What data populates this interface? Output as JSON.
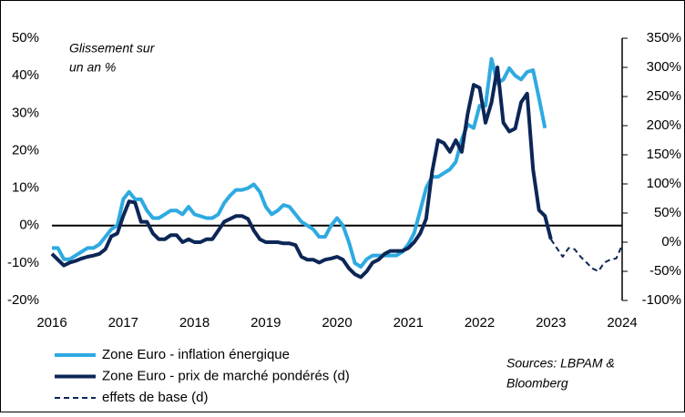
{
  "chart_data": {
    "type": "line",
    "annotation": "Glissement sur",
    "annotation2": "un an %",
    "source": [
      "Sources: LBPAM &",
      "Bloomberg"
    ],
    "xlim": [
      2016,
      2024
    ],
    "xticks": [
      2016,
      2017,
      2018,
      2019,
      2020,
      2021,
      2022,
      2023,
      2024
    ],
    "ylim": [
      -20,
      50
    ],
    "yticks": [
      {
        "value": -20,
        "label": "-20%"
      },
      {
        "value": -10,
        "label": "-10%"
      },
      {
        "value": 0,
        "label": "0%"
      },
      {
        "value": 10,
        "label": "10%"
      },
      {
        "value": 20,
        "label": "20%"
      },
      {
        "value": 30,
        "label": "30%"
      },
      {
        "value": 40,
        "label": "40%"
      },
      {
        "value": 50,
        "label": "50%"
      }
    ],
    "y2lim": [
      -100,
      350
    ],
    "y2ticks": [
      {
        "value": -100,
        "label": "-100%"
      },
      {
        "value": -50,
        "label": "-50%"
      },
      {
        "value": 0,
        "label": "0%"
      },
      {
        "value": 50,
        "label": "50%"
      },
      {
        "value": 100,
        "label": "100%"
      },
      {
        "value": 150,
        "label": "150%"
      },
      {
        "value": 200,
        "label": "200%"
      },
      {
        "value": 250,
        "label": "250%"
      },
      {
        "value": 300,
        "label": "300%"
      },
      {
        "value": 350,
        "label": "350%"
      }
    ],
    "series": [
      {
        "name": "Zone Euro -  inflation énergique",
        "color": "#2eaae1",
        "axis": "y",
        "x": [
          2016,
          2016.083,
          2016.167,
          2016.25,
          2016.333,
          2016.417,
          2016.5,
          2016.583,
          2016.667,
          2016.75,
          2016.833,
          2016.917,
          2017,
          2017.083,
          2017.167,
          2017.25,
          2017.333,
          2017.417,
          2017.5,
          2017.583,
          2017.667,
          2017.75,
          2017.833,
          2017.917,
          2018,
          2018.083,
          2018.167,
          2018.25,
          2018.333,
          2018.417,
          2018.5,
          2018.583,
          2018.667,
          2018.75,
          2018.833,
          2018.917,
          2019,
          2019.083,
          2019.167,
          2019.25,
          2019.333,
          2019.417,
          2019.5,
          2019.583,
          2019.667,
          2019.75,
          2019.833,
          2019.917,
          2020,
          2020.083,
          2020.167,
          2020.25,
          2020.333,
          2020.417,
          2020.5,
          2020.583,
          2020.667,
          2020.75,
          2020.833,
          2020.917,
          2021,
          2021.083,
          2021.167,
          2021.25,
          2021.333,
          2021.417,
          2021.5,
          2021.583,
          2021.667,
          2021.75,
          2021.833,
          2021.917,
          2022,
          2022.083,
          2022.167,
          2022.25,
          2022.333,
          2022.417,
          2022.5,
          2022.583,
          2022.667,
          2022.75,
          2022.833,
          2022.917
        ],
        "values": [
          -6,
          -6,
          -9,
          -9,
          -8,
          -7,
          -6,
          -6,
          -5,
          -3,
          -1,
          0,
          7,
          9,
          7,
          7,
          4,
          2,
          2,
          3,
          4,
          4,
          3,
          5,
          3,
          2.5,
          2,
          2,
          3,
          6,
          8,
          9.5,
          9.5,
          10,
          11,
          9,
          5,
          3,
          4,
          5.5,
          5,
          3,
          1,
          0,
          -1,
          -3,
          -3,
          0,
          2,
          0,
          -4.5,
          -10,
          -11,
          -9,
          -8,
          -8,
          -8,
          -8,
          -8,
          -7,
          -5,
          -2,
          4,
          10,
          13,
          13,
          14,
          15,
          17,
          23,
          27,
          26,
          32,
          32,
          44.5,
          38,
          39,
          42,
          40,
          39,
          41,
          41.5,
          34,
          26
        ]
      },
      {
        "name": "Zone Euro -  prix de marché pondérés (d)",
        "color": "#0c2656",
        "axis": "y2",
        "x": [
          2016,
          2016.083,
          2016.167,
          2016.25,
          2016.333,
          2016.417,
          2016.5,
          2016.583,
          2016.667,
          2016.75,
          2016.833,
          2016.917,
          2017,
          2017.083,
          2017.167,
          2017.25,
          2017.333,
          2017.417,
          2017.5,
          2017.583,
          2017.667,
          2017.75,
          2017.833,
          2017.917,
          2018,
          2018.083,
          2018.167,
          2018.25,
          2018.333,
          2018.417,
          2018.5,
          2018.583,
          2018.667,
          2018.75,
          2018.833,
          2018.917,
          2019,
          2019.083,
          2019.167,
          2019.25,
          2019.333,
          2019.417,
          2019.5,
          2019.583,
          2019.667,
          2019.75,
          2019.833,
          2019.917,
          2020,
          2020.083,
          2020.167,
          2020.25,
          2020.333,
          2020.417,
          2020.5,
          2020.583,
          2020.667,
          2020.75,
          2020.833,
          2020.917,
          2021,
          2021.083,
          2021.167,
          2021.25,
          2021.333,
          2021.417,
          2021.5,
          2021.583,
          2021.667,
          2021.75,
          2021.833,
          2021.917,
          2022,
          2022.083,
          2022.167,
          2022.25,
          2022.333,
          2022.417,
          2022.5,
          2022.583,
          2022.667,
          2022.75,
          2022.833,
          2022.917,
          2023
        ],
        "values": [
          -20,
          -30,
          -40,
          -35,
          -32,
          -28,
          -25,
          -23,
          -20,
          -12,
          10,
          15,
          45,
          70,
          68,
          35,
          35,
          15,
          5,
          5,
          12,
          12,
          0,
          5,
          0,
          0,
          5,
          5,
          20,
          35,
          40,
          45,
          45,
          40,
          20,
          5,
          0,
          0,
          0,
          -2,
          -2,
          -5,
          -25,
          -30,
          -30,
          -35,
          -30,
          -28,
          -25,
          -30,
          -45,
          -55,
          -60,
          -50,
          -35,
          -30,
          -20,
          -15,
          -15,
          -15,
          -10,
          0,
          15,
          40,
          120,
          175,
          170,
          155,
          175,
          155,
          220,
          270,
          265,
          205,
          240,
          300,
          205,
          190,
          195,
          240,
          255,
          125,
          55,
          45,
          5
        ]
      },
      {
        "name": "effets de base (d)",
        "color": "#0c2656",
        "axis": "y2",
        "dashed": true,
        "x": [
          2023,
          2023.083,
          2023.167,
          2023.25,
          2023.333,
          2023.417,
          2023.5,
          2023.583,
          2023.667,
          2023.75,
          2023.833,
          2023.917,
          2024
        ],
        "values": [
          5,
          -10,
          -25,
          -10,
          -12,
          -25,
          -35,
          -45,
          -50,
          -35,
          -30,
          -28,
          -5
        ]
      }
    ]
  }
}
